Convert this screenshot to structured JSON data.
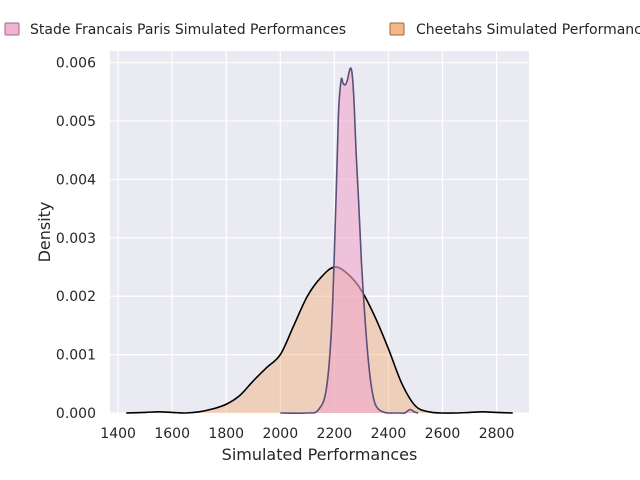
{
  "chart_data": {
    "type": "area",
    "xlabel": "Simulated Performances",
    "ylabel": "Density",
    "xlim": [
      1370,
      2920
    ],
    "ylim": [
      0,
      0.0062
    ],
    "x_ticks": [
      1400,
      1600,
      1800,
      2000,
      2200,
      2400,
      2600,
      2800
    ],
    "x_tick_labels": [
      "1400",
      "1600",
      "1800",
      "2000",
      "2200",
      "2400",
      "2600",
      "2800"
    ],
    "y_ticks": [
      0.0,
      0.001,
      0.002,
      0.003,
      0.004,
      0.005,
      0.006
    ],
    "y_tick_labels": [
      "0.000",
      "0.001",
      "0.002",
      "0.003",
      "0.004",
      "0.005",
      "0.006"
    ],
    "grid": true,
    "legend_position": "top",
    "background": "#eaeaf2",
    "series": [
      {
        "name": "Stade Francais Paris Simulated Performances",
        "fill": "#f0a6cc",
        "fill_opacity": 0.6,
        "line": "#5b4f7a",
        "x": [
          2000,
          2100,
          2140,
          2170,
          2190,
          2205,
          2215,
          2225,
          2232,
          2240,
          2248,
          2255,
          2262,
          2268,
          2274,
          2280,
          2290,
          2300,
          2315,
          2330,
          2345,
          2360,
          2380,
          2400,
          2420,
          2440,
          2460,
          2480,
          2495,
          2510
        ],
        "y": [
          0.0,
          0.0,
          5e-05,
          0.0004,
          0.0015,
          0.0035,
          0.0051,
          0.0057,
          0.00565,
          0.00562,
          0.0057,
          0.00585,
          0.0059,
          0.0057,
          0.0052,
          0.0045,
          0.0036,
          0.0026,
          0.0015,
          0.0007,
          0.00025,
          8e-05,
          2e-05,
          0.0,
          0.0,
          0.0,
          0.0,
          6e-05,
          2e-05,
          0.0
        ]
      },
      {
        "name": "Cheetahs Simulated Performances",
        "fill": "#f5b07a",
        "fill_opacity": 0.45,
        "line": "#000000",
        "x": [
          1430,
          1500,
          1550,
          1600,
          1650,
          1700,
          1750,
          1800,
          1850,
          1900,
          1950,
          2000,
          2050,
          2100,
          2150,
          2200,
          2250,
          2300,
          2350,
          2400,
          2450,
          2500,
          2550,
          2600,
          2650,
          2700,
          2750,
          2800,
          2860
        ],
        "y": [
          0.0,
          1e-05,
          2e-05,
          1e-05,
          0.0,
          2e-05,
          7e-05,
          0.00015,
          0.0003,
          0.00055,
          0.00078,
          0.001,
          0.0015,
          0.002,
          0.00232,
          0.0025,
          0.00238,
          0.0021,
          0.00165,
          0.0011,
          0.0005,
          0.00012,
          2e-05,
          0.0,
          0.0,
          1e-05,
          2e-05,
          1e-05,
          0.0
        ]
      }
    ]
  }
}
